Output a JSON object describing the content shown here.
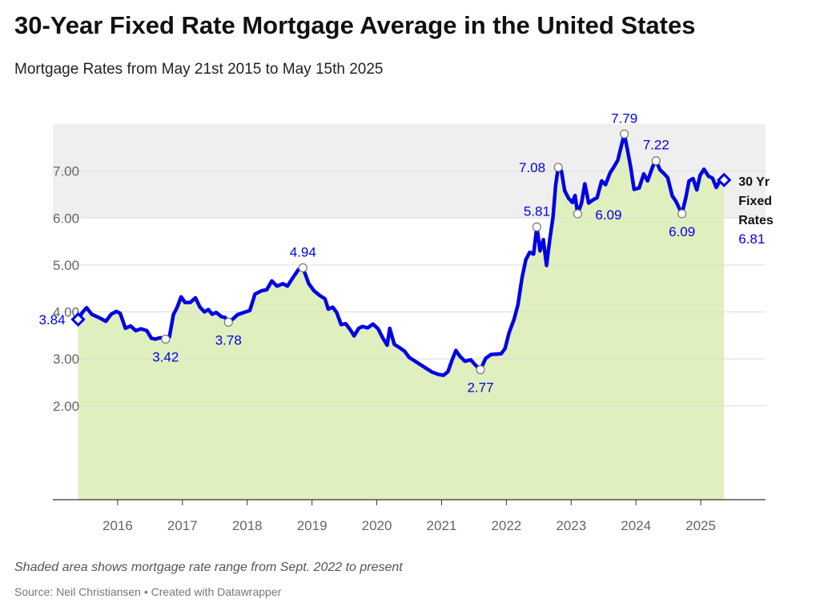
{
  "header": {
    "title": "30-Year Fixed Rate Mortgage Average in the United States",
    "subtitle": "Mortgage Rates from May 21st 2015 to May 15th 2025"
  },
  "footer": {
    "notes": "Shaded area shows mortgage rate range from Sept. 2022 to present",
    "source": "Source: Neil Christiansen • Created with Datawrapper"
  },
  "colors": {
    "line": "#0000e6",
    "area_fill": "#e0efbe",
    "range_band": "#efefef",
    "grid": "#dddddd",
    "axis": "#333333",
    "tick_text": "#666666"
  },
  "chart_data": {
    "type": "area",
    "x_unit": "year",
    "y_unit": "percent",
    "xlim": [
      2015.0,
      2026.0
    ],
    "ylim": [
      0.0,
      8.0
    ],
    "y_ticks": [
      2.0,
      3.0,
      4.0,
      5.0,
      6.0,
      7.0
    ],
    "y_tick_labels": [
      "2.00",
      "3.00",
      "4.00",
      "5.00",
      "6.00",
      "7.00"
    ],
    "x_ticks": [
      2016,
      2017,
      2018,
      2019,
      2020,
      2021,
      2022,
      2023,
      2024,
      2025
    ],
    "x_tick_labels": [
      "2016",
      "2017",
      "2018",
      "2019",
      "2020",
      "2021",
      "2022",
      "2023",
      "2024",
      "2025"
    ],
    "grid": true,
    "shaded_range": {
      "y_min": 6.0,
      "y_max": 8.0
    },
    "series": [
      {
        "name": "30 Yr Fixed Rates",
        "points": [
          [
            2015.39,
            3.84
          ],
          [
            2015.45,
            3.98
          ],
          [
            2015.52,
            4.09
          ],
          [
            2015.6,
            3.95
          ],
          [
            2015.68,
            3.9
          ],
          [
            2015.75,
            3.85
          ],
          [
            2015.82,
            3.8
          ],
          [
            2015.9,
            3.95
          ],
          [
            2015.98,
            4.01
          ],
          [
            2016.04,
            3.97
          ],
          [
            2016.12,
            3.65
          ],
          [
            2016.2,
            3.7
          ],
          [
            2016.28,
            3.6
          ],
          [
            2016.36,
            3.64
          ],
          [
            2016.45,
            3.6
          ],
          [
            2016.52,
            3.44
          ],
          [
            2016.58,
            3.42
          ],
          [
            2016.66,
            3.45
          ],
          [
            2016.74,
            3.42
          ],
          [
            2016.8,
            3.47
          ],
          [
            2016.86,
            3.94
          ],
          [
            2016.92,
            4.1
          ],
          [
            2016.98,
            4.32
          ],
          [
            2017.04,
            4.2
          ],
          [
            2017.12,
            4.2
          ],
          [
            2017.2,
            4.3
          ],
          [
            2017.27,
            4.1
          ],
          [
            2017.34,
            4.0
          ],
          [
            2017.4,
            4.05
          ],
          [
            2017.46,
            3.95
          ],
          [
            2017.52,
            3.99
          ],
          [
            2017.6,
            3.9
          ],
          [
            2017.66,
            3.88
          ],
          [
            2017.71,
            3.78
          ],
          [
            2017.78,
            3.85
          ],
          [
            2017.85,
            3.94
          ],
          [
            2017.95,
            3.99
          ],
          [
            2018.04,
            4.03
          ],
          [
            2018.12,
            4.38
          ],
          [
            2018.22,
            4.45
          ],
          [
            2018.3,
            4.47
          ],
          [
            2018.38,
            4.66
          ],
          [
            2018.46,
            4.55
          ],
          [
            2018.55,
            4.6
          ],
          [
            2018.62,
            4.55
          ],
          [
            2018.7,
            4.72
          ],
          [
            2018.79,
            4.9
          ],
          [
            2018.86,
            4.94
          ],
          [
            2018.95,
            4.6
          ],
          [
            2019.03,
            4.45
          ],
          [
            2019.12,
            4.35
          ],
          [
            2019.2,
            4.28
          ],
          [
            2019.25,
            4.06
          ],
          [
            2019.32,
            4.1
          ],
          [
            2019.38,
            3.99
          ],
          [
            2019.45,
            3.73
          ],
          [
            2019.52,
            3.75
          ],
          [
            2019.6,
            3.6
          ],
          [
            2019.65,
            3.49
          ],
          [
            2019.72,
            3.65
          ],
          [
            2019.78,
            3.69
          ],
          [
            2019.86,
            3.66
          ],
          [
            2019.94,
            3.74
          ],
          [
            2020.02,
            3.64
          ],
          [
            2020.09,
            3.45
          ],
          [
            2020.16,
            3.29
          ],
          [
            2020.2,
            3.65
          ],
          [
            2020.27,
            3.31
          ],
          [
            2020.35,
            3.24
          ],
          [
            2020.43,
            3.16
          ],
          [
            2020.5,
            3.03
          ],
          [
            2020.58,
            2.96
          ],
          [
            2020.66,
            2.89
          ],
          [
            2020.75,
            2.81
          ],
          [
            2020.85,
            2.72
          ],
          [
            2020.95,
            2.67
          ],
          [
            2021.03,
            2.65
          ],
          [
            2021.1,
            2.73
          ],
          [
            2021.16,
            2.97
          ],
          [
            2021.22,
            3.18
          ],
          [
            2021.28,
            3.06
          ],
          [
            2021.36,
            2.95
          ],
          [
            2021.45,
            2.98
          ],
          [
            2021.52,
            2.87
          ],
          [
            2021.6,
            2.77
          ],
          [
            2021.68,
            3.01
          ],
          [
            2021.76,
            3.09
          ],
          [
            2021.84,
            3.1
          ],
          [
            2021.92,
            3.11
          ],
          [
            2021.98,
            3.22
          ],
          [
            2022.04,
            3.55
          ],
          [
            2022.12,
            3.85
          ],
          [
            2022.18,
            4.16
          ],
          [
            2022.24,
            4.72
          ],
          [
            2022.3,
            5.11
          ],
          [
            2022.36,
            5.27
          ],
          [
            2022.42,
            5.23
          ],
          [
            2022.47,
            5.81
          ],
          [
            2022.52,
            5.3
          ],
          [
            2022.57,
            5.54
          ],
          [
            2022.62,
            4.99
          ],
          [
            2022.67,
            5.55
          ],
          [
            2022.72,
            6.02
          ],
          [
            2022.76,
            6.7
          ],
          [
            2022.8,
            7.08
          ],
          [
            2022.85,
            7.0
          ],
          [
            2022.9,
            6.58
          ],
          [
            2022.96,
            6.42
          ],
          [
            2023.02,
            6.33
          ],
          [
            2023.06,
            6.48
          ],
          [
            2023.1,
            6.09
          ],
          [
            2023.16,
            6.32
          ],
          [
            2023.21,
            6.73
          ],
          [
            2023.27,
            6.32
          ],
          [
            2023.34,
            6.39
          ],
          [
            2023.4,
            6.43
          ],
          [
            2023.47,
            6.79
          ],
          [
            2023.53,
            6.71
          ],
          [
            2023.6,
            6.96
          ],
          [
            2023.66,
            7.09
          ],
          [
            2023.72,
            7.23
          ],
          [
            2023.78,
            7.57
          ],
          [
            2023.82,
            7.79
          ],
          [
            2023.87,
            7.44
          ],
          [
            2023.92,
            7.07
          ],
          [
            2023.97,
            6.61
          ],
          [
            2024.05,
            6.64
          ],
          [
            2024.12,
            6.94
          ],
          [
            2024.18,
            6.79
          ],
          [
            2024.26,
            7.1
          ],
          [
            2024.31,
            7.22
          ],
          [
            2024.37,
            7.03
          ],
          [
            2024.43,
            6.95
          ],
          [
            2024.49,
            6.86
          ],
          [
            2024.56,
            6.47
          ],
          [
            2024.62,
            6.35
          ],
          [
            2024.67,
            6.2
          ],
          [
            2024.71,
            6.09
          ],
          [
            2024.77,
            6.44
          ],
          [
            2024.82,
            6.79
          ],
          [
            2024.88,
            6.84
          ],
          [
            2024.94,
            6.6
          ],
          [
            2024.99,
            6.91
          ],
          [
            2025.05,
            7.04
          ],
          [
            2025.12,
            6.89
          ],
          [
            2025.18,
            6.85
          ],
          [
            2025.24,
            6.65
          ],
          [
            2025.3,
            6.81
          ],
          [
            2025.36,
            6.81
          ]
        ]
      }
    ],
    "point_labels": [
      {
        "x": 2015.39,
        "y": 3.84,
        "label": "3.84",
        "pos": "left",
        "marker": "diamond"
      },
      {
        "x": 2016.74,
        "y": 3.42,
        "label": "3.42",
        "pos": "below",
        "marker": "circle"
      },
      {
        "x": 2017.71,
        "y": 3.78,
        "label": "3.78",
        "pos": "below",
        "marker": "circle"
      },
      {
        "x": 2018.86,
        "y": 4.94,
        "label": "4.94",
        "pos": "above",
        "marker": "circle"
      },
      {
        "x": 2021.6,
        "y": 2.77,
        "label": "2.77",
        "pos": "below",
        "marker": "circle"
      },
      {
        "x": 2022.47,
        "y": 5.81,
        "label": "5.81",
        "pos": "above",
        "marker": "circle"
      },
      {
        "x": 2022.8,
        "y": 7.08,
        "label": "7.08",
        "pos": "left",
        "marker": "circle"
      },
      {
        "x": 2023.1,
        "y": 6.09,
        "label": "6.09",
        "pos": "right",
        "marker": "circle"
      },
      {
        "x": 2023.82,
        "y": 7.79,
        "label": "7.79",
        "pos": "above",
        "marker": "circle"
      },
      {
        "x": 2024.31,
        "y": 7.22,
        "label": "7.22",
        "pos": "above",
        "marker": "circle"
      },
      {
        "x": 2024.71,
        "y": 6.09,
        "label": "6.09",
        "pos": "below",
        "marker": "circle"
      }
    ],
    "end_label": {
      "series": "30 Yr Fixed Rates",
      "lines": [
        "30 Yr",
        "Fixed",
        "Rates"
      ],
      "value": "6.81",
      "x": 2025.36,
      "y": 6.81
    }
  }
}
